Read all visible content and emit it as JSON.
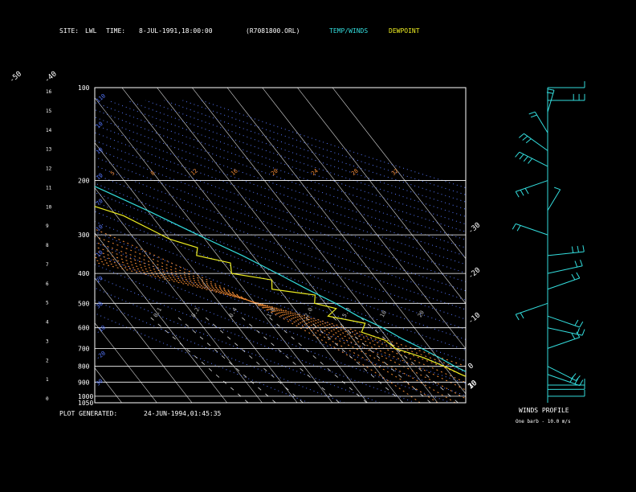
{
  "header": {
    "site_label": "SITE:",
    "site_value": "LWL",
    "time_label": "TIME:",
    "time_value": "8-JUL-1991,18:00:00",
    "file_id": "(R7081800.ORL)",
    "temp_winds_label": "TEMP/WINDS",
    "dewpoint_label": "DEWPOINT"
  },
  "footer": {
    "generated_label": "PLOT GENERATED:",
    "generated_value": "24-JUN-1994,01:45:35"
  },
  "winds_panel": {
    "title": "WINDS PROFILE",
    "note": "One barb - 10.0 m/s"
  },
  "colors": {
    "background": "#000000",
    "temperature": "#33dddd",
    "dewpoint": "#eeee22",
    "isobar": "#ffffff",
    "isotherm": "#dddddd",
    "dry_adiabat": "#5577ff",
    "moist_adiabat": "#ee8833",
    "mixing_ratio": "#dddddd",
    "winds": "#33dddd"
  },
  "chart_data": {
    "type": "skew-t log-p",
    "pressure_axis": {
      "labels": [
        "100",
        "200",
        "300",
        "400",
        "500",
        "600",
        "700",
        "800",
        "900",
        "1000",
        "1050"
      ],
      "values": [
        100,
        200,
        300,
        400,
        500,
        600,
        700,
        800,
        900,
        1000,
        1050
      ]
    },
    "height_axis": {
      "labels": [
        "16",
        "15",
        "14",
        "13",
        "12",
        "11",
        "10",
        "9",
        "8",
        "7",
        "6",
        "5",
        "4",
        "3",
        "2",
        "1",
        "0"
      ],
      "values": [
        16,
        15,
        14,
        13,
        12,
        11,
        10,
        9,
        8,
        7,
        6,
        5,
        4,
        3,
        2,
        1,
        0
      ]
    },
    "temperature_labels": [
      "-110",
      "-100",
      "-90",
      "-80",
      "-70",
      "-60",
      "-50",
      "-40",
      "-30",
      "-20",
      "-10",
      "0",
      "10",
      "20",
      "30"
    ],
    "temperature_values": [
      -110,
      -100,
      -90,
      -80,
      -70,
      -60,
      -50,
      -40,
      -30,
      -20,
      -10,
      0,
      10,
      20,
      30
    ],
    "dry_adiabat_labels": [
      "110",
      "10",
      "10",
      "10",
      "70",
      "10",
      "10",
      "20",
      "30",
      "-10",
      "-20",
      "30"
    ],
    "moist_adiabat_labels": [
      "5",
      "8",
      "12",
      "16",
      "20",
      "24",
      "28",
      "32"
    ],
    "mixing_ratio_labels": [
      "0.1",
      "0.2",
      "0.4",
      "1.0",
      "2.0",
      "5.0",
      "10",
      "20"
    ],
    "temperature_profile": [
      {
        "p": 1050,
        "t": 28.0
      },
      {
        "p": 1000,
        "t": 27.0
      },
      {
        "p": 950,
        "t": 23.5
      },
      {
        "p": 900,
        "t": 19.5
      },
      {
        "p": 850,
        "t": 16.0
      },
      {
        "p": 800,
        "t": 13.0
      },
      {
        "p": 750,
        "t": 10.5
      },
      {
        "p": 700,
        "t": 7.5
      },
      {
        "p": 650,
        "t": 4.0
      },
      {
        "p": 600,
        "t": 1.0
      },
      {
        "p": 550,
        "t": -3.5
      },
      {
        "p": 500,
        "t": -7.0
      },
      {
        "p": 450,
        "t": -12.0
      },
      {
        "p": 400,
        "t": -17.0
      },
      {
        "p": 350,
        "t": -23.0
      },
      {
        "p": 300,
        "t": -31.0
      },
      {
        "p": 250,
        "t": -40.0
      },
      {
        "p": 200,
        "t": -52.0
      },
      {
        "p": 175,
        "t": -59.0
      },
      {
        "p": 150,
        "t": -65.0
      },
      {
        "p": 125,
        "t": -72.0
      },
      {
        "p": 110,
        "t": -75.0
      },
      {
        "p": 100,
        "t": -77.0
      }
    ],
    "dewpoint_profile": [
      {
        "p": 1050,
        "t": 21.0
      },
      {
        "p": 1000,
        "t": 21.5
      },
      {
        "p": 950,
        "t": 19.0
      },
      {
        "p": 900,
        "t": 16.5
      },
      {
        "p": 850,
        "t": 13.0
      },
      {
        "p": 800,
        "t": 10.0
      },
      {
        "p": 750,
        "t": 6.0
      },
      {
        "p": 700,
        "t": 0.0
      },
      {
        "p": 660,
        "t": -1.0
      },
      {
        "p": 620,
        "t": -6.0
      },
      {
        "p": 580,
        "t": -3.0
      },
      {
        "p": 550,
        "t": -12.0
      },
      {
        "p": 520,
        "t": -8.0
      },
      {
        "p": 500,
        "t": -13.0
      },
      {
        "p": 470,
        "t": -11.0
      },
      {
        "p": 450,
        "t": -22.0
      },
      {
        "p": 420,
        "t": -20.0
      },
      {
        "p": 400,
        "t": -30.0
      },
      {
        "p": 370,
        "t": -28.0
      },
      {
        "p": 350,
        "t": -36.0
      },
      {
        "p": 330,
        "t": -34.0
      },
      {
        "p": 310,
        "t": -40.0
      },
      {
        "p": 290,
        "t": -43.0
      },
      {
        "p": 260,
        "t": -48.0
      },
      {
        "p": 240,
        "t": -55.0
      },
      {
        "p": 220,
        "t": -70.0
      },
      {
        "p": 205,
        "t": -83.0
      },
      {
        "p": 190,
        "t": -86.0
      },
      {
        "p": 170,
        "t": -87.0
      },
      {
        "p": 150,
        "t": -86.0
      },
      {
        "p": 130,
        "t": -84.0
      },
      {
        "p": 115,
        "t": -80.0
      },
      {
        "p": 100,
        "t": -78.0
      }
    ],
    "wind_profile": [
      {
        "p": 1000,
        "speed": 10,
        "dir": 270
      },
      {
        "p": 950,
        "speed": 10,
        "dir": 270
      },
      {
        "p": 920,
        "speed": 10,
        "dir": 270
      },
      {
        "p": 850,
        "speed": 25,
        "dir": 300
      },
      {
        "p": 800,
        "speed": 20,
        "dir": 310
      },
      {
        "p": 700,
        "speed": 15,
        "dir": 240
      },
      {
        "p": 600,
        "speed": 15,
        "dir": 290
      },
      {
        "p": 550,
        "speed": 20,
        "dir": 300
      },
      {
        "p": 500,
        "speed": 15,
        "dir": 60
      },
      {
        "p": 450,
        "speed": 20,
        "dir": 240
      },
      {
        "p": 400,
        "speed": 20,
        "dir": 250
      },
      {
        "p": 350,
        "speed": 25,
        "dir": 260
      },
      {
        "p": 300,
        "speed": 15,
        "dir": 120
      },
      {
        "p": 250,
        "speed": 10,
        "dir": 200
      },
      {
        "p": 200,
        "speed": 30,
        "dir": 60
      },
      {
        "p": 180,
        "speed": 35,
        "dir": 130
      },
      {
        "p": 160,
        "speed": 25,
        "dir": 140
      },
      {
        "p": 140,
        "speed": 20,
        "dir": 160
      },
      {
        "p": 120,
        "speed": 20,
        "dir": 190
      },
      {
        "p": 110,
        "speed": 25,
        "dir": 270
      },
      {
        "p": 100,
        "speed": 10,
        "dir": 270
      }
    ]
  }
}
